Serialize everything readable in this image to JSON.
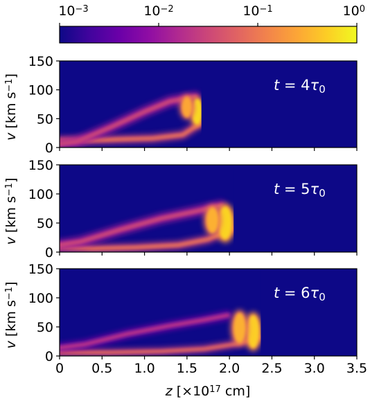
{
  "chart_data": {
    "type": "heatmap",
    "colorbar": {
      "colormap": "plasma",
      "scale": "log",
      "range": [
        0.001,
        1
      ],
      "ticks": [
        {
          "value": 0.001,
          "base": "10",
          "exp": "−3"
        },
        {
          "value": 0.01,
          "base": "10",
          "exp": "−2"
        },
        {
          "value": 0.1,
          "base": "10",
          "exp": "−1"
        },
        {
          "value": 1,
          "base": "10",
          "exp": "0"
        }
      ],
      "colors": [
        "#0d0887",
        "#41049d",
        "#6a00a8",
        "#8f0da4",
        "#b12a90",
        "#cc4778",
        "#e16462",
        "#f2844b",
        "#fca636",
        "#fcce25",
        "#f0f921"
      ]
    },
    "xlim": [
      0,
      3.5
    ],
    "xticks": [
      0,
      0.5,
      1,
      1.5,
      2,
      2.5,
      3,
      3.5
    ],
    "xtick_labels": [
      "0",
      "0.5",
      "1.0",
      "1.5",
      "2.0",
      "2.5",
      "3.0",
      "3.5"
    ],
    "xlabel": {
      "var": "z",
      "pre": " [×10",
      "exp": "17",
      "post": " cm]"
    },
    "ylim": [
      0,
      150
    ],
    "yticks": [
      0,
      50,
      100,
      150
    ],
    "ytick_labels": [
      "0",
      "50",
      "100",
      "150"
    ],
    "ylabel": {
      "var": "v",
      "pre": " [km s",
      "exp": "−1",
      "post": "]"
    },
    "background_level": 0.001,
    "panels": [
      {
        "time_label": {
          "var": "t",
          "eq": " = 4",
          "sym": "τ",
          "sub": "0"
        },
        "shock_front_z": 1.67,
        "features": [
          {
            "kind": "band",
            "z": [
              0,
              0.3,
              0.7,
              1.1,
              1.45,
              1.66
            ],
            "v": [
              12,
              12,
              14,
              16,
              22,
              42
            ],
            "width": 8,
            "level": 0.08
          },
          {
            "kind": "band",
            "z": [
              0,
              0.2,
              0.6,
              1.0,
              1.3,
              1.6
            ],
            "v": [
              6,
              10,
              35,
              62,
              80,
              88
            ],
            "width": 10,
            "level": 0.03
          },
          {
            "kind": "blob",
            "z": 1.62,
            "v": 62,
            "dz": 0.06,
            "dv": 22,
            "level": 0.6
          },
          {
            "kind": "blob",
            "z": 1.5,
            "v": 70,
            "dz": 0.06,
            "dv": 18,
            "level": 0.25
          }
        ]
      },
      {
        "time_label": {
          "var": "t",
          "eq": " = 5",
          "sym": "τ",
          "sub": "0"
        },
        "shock_front_z": 2.05,
        "features": [
          {
            "kind": "band",
            "z": [
              0,
              0.4,
              0.9,
              1.4,
              1.75,
              2.03
            ],
            "v": [
              8,
              6,
              8,
              12,
              22,
              40
            ],
            "width": 8,
            "level": 0.08
          },
          {
            "kind": "band",
            "z": [
              0,
              0.25,
              0.7,
              1.2,
              1.6,
              1.9
            ],
            "v": [
              12,
              18,
              38,
              58,
              70,
              80
            ],
            "width": 10,
            "level": 0.03
          },
          {
            "kind": "blob",
            "z": 1.95,
            "v": 50,
            "dz": 0.08,
            "dv": 28,
            "level": 0.55
          },
          {
            "kind": "blob",
            "z": 1.8,
            "v": 55,
            "dz": 0.07,
            "dv": 22,
            "level": 0.3
          }
        ]
      },
      {
        "time_label": {
          "var": "t",
          "eq": " = 6",
          "sym": "τ",
          "sub": "0"
        },
        "shock_front_z": 2.37,
        "features": [
          {
            "kind": "band",
            "z": [
              0,
              0.6,
              1.2,
              1.7,
              2.05,
              2.35
            ],
            "v": [
              6,
              6,
              8,
              12,
              20,
              32
            ],
            "width": 7,
            "level": 0.07
          },
          {
            "kind": "band",
            "z": [
              0,
              0.3,
              0.8,
              1.3,
              1.7,
              1.98
            ],
            "v": [
              14,
              20,
              38,
              52,
              62,
              70
            ],
            "width": 8,
            "level": 0.02
          },
          {
            "kind": "blob",
            "z": 2.28,
            "v": 42,
            "dz": 0.07,
            "dv": 28,
            "level": 0.5
          },
          {
            "kind": "blob",
            "z": 2.12,
            "v": 48,
            "dz": 0.07,
            "dv": 26,
            "level": 0.3
          }
        ]
      }
    ]
  }
}
